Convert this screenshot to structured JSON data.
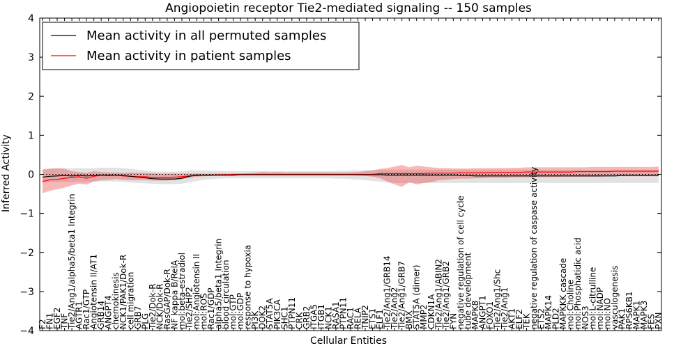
{
  "chart_data": {
    "type": "line",
    "title": "Angiopoietin receptor Tie2-mediated signaling -- 150 samples",
    "xlabel": "Cellular Entities",
    "ylabel": "Inferred Activity",
    "ylim": [
      -4,
      4
    ],
    "yticks": [
      "−4",
      "−3",
      "−2",
      "−1",
      "0",
      "1",
      "2",
      "3",
      "4"
    ],
    "yticks_values": [
      -4,
      -3,
      -2,
      -1,
      0,
      1,
      2,
      3,
      4
    ],
    "legend_position": "top-left",
    "legend": [
      {
        "label": "Mean activity in all permuted samples",
        "color": "#000000"
      },
      {
        "label": "Mean activity in patient samples",
        "color": "#ff0000"
      }
    ],
    "categories": [
      "F2",
      "FN1",
      "EGF2",
      "TNF",
      "Tie2/Ang1/alpha5/beta1 Integrin",
      "AGTR1",
      "Rac1/GTP",
      "Angiotensin II/AT1",
      "GRB14",
      "ANGPT4",
      "chemokinesis",
      "NCK1/PAK1/Dok-R",
      "cell migration",
      "GRB7",
      "PLG",
      "Tie2/Dok-R",
      "NCK/Dok-R",
      "RasGAP/Dok-R",
      "NF kappa B/RelA",
      "mol:beta-estradiol",
      "Tie2/SHP2",
      "mol:Angiotensin II",
      "mol:ROS",
      "Rac1/GDP",
      "alpha5/beta1 Integrin",
      "blood circulation",
      "mol:GTP",
      "mol:GDP",
      "response to hypoxia",
      "PI3K",
      "DOK2",
      "STAT5A",
      "PIK3CA",
      "SHC1",
      "PTPN11",
      "CRK",
      "GRB2",
      "ITGA5",
      "ITGB1",
      "NCK1",
      "RASA1",
      "PTPN11",
      "RAC1",
      "RELA",
      "TNIP2",
      "ETS1",
      "ELF1",
      "Tie2/Ang1/GRB14",
      "Tie2/Ang2",
      "Tie2/Ang1/GRB7",
      "BMX",
      "STAT5A (dimer)",
      "MMP2",
      "CDKN1A",
      "Tie2/Ang1/ABIN2",
      "Tie2/Ang1/GRB2",
      "FYN",
      "negative regulation of cell cycle",
      "tube development",
      "MAPK8",
      "ANGPT1",
      "FOXO1",
      "Tie2/Ang1/Shc",
      "Tie2/Ang1",
      "AKT1",
      "ELF2",
      "TEK",
      "negative regulation of caspase activity",
      "ETS2",
      "MAPK14",
      "PLD2",
      "MAPKKK cascade",
      "mol:Choline",
      "mol:Phosphatidic acid",
      "NOS3",
      "mol:L-citrulline",
      "mol:NADP",
      "mol:NO",
      "vasculogenesis",
      "PAK1",
      "RPS6KB1",
      "MAPK1",
      "MAPK3",
      "FES",
      "PXN"
    ],
    "series": [
      {
        "name": "Mean activity in all permuted samples",
        "color": "#000000",
        "values": [
          -0.07,
          -0.05,
          -0.04,
          -0.03,
          -0.04,
          -0.03,
          -0.04,
          -0.03,
          -0.02,
          -0.02,
          -0.02,
          -0.03,
          -0.05,
          -0.07,
          -0.09,
          -0.11,
          -0.12,
          -0.12,
          -0.12,
          -0.1,
          -0.05,
          -0.02,
          -0.02,
          -0.02,
          -0.02,
          -0.02,
          -0.02,
          -0.01,
          -0.01,
          -0.01,
          -0.01,
          -0.01,
          -0.01,
          -0.01,
          -0.01,
          -0.01,
          -0.01,
          -0.01,
          -0.01,
          -0.01,
          -0.01,
          -0.01,
          -0.01,
          -0.01,
          -0.01,
          -0.01,
          -0.01,
          -0.02,
          -0.02,
          -0.02,
          -0.02,
          -0.02,
          -0.02,
          -0.02,
          -0.02,
          -0.02,
          -0.02,
          -0.03,
          -0.03,
          -0.04,
          -0.04,
          -0.04,
          -0.04,
          -0.04,
          -0.04,
          -0.04,
          -0.04,
          -0.04,
          -0.04,
          -0.04,
          -0.04,
          -0.04,
          -0.04,
          -0.04,
          -0.04,
          -0.04,
          -0.04,
          -0.04,
          -0.04,
          -0.03,
          -0.03,
          -0.03,
          -0.03,
          -0.03,
          -0.03
        ],
        "band_lower": [
          -0.22,
          -0.2,
          -0.2,
          -0.19,
          -0.2,
          -0.19,
          -0.2,
          -0.19,
          -0.18,
          -0.18,
          -0.18,
          -0.19,
          -0.21,
          -0.22,
          -0.23,
          -0.24,
          -0.25,
          -0.25,
          -0.25,
          -0.24,
          -0.2,
          -0.17,
          -0.14,
          -0.12,
          -0.11,
          -0.1,
          -0.1,
          -0.1,
          -0.1,
          -0.1,
          -0.1,
          -0.1,
          -0.1,
          -0.1,
          -0.1,
          -0.1,
          -0.1,
          -0.1,
          -0.1,
          -0.1,
          -0.11,
          -0.11,
          -0.12,
          -0.13,
          -0.15,
          -0.17,
          -0.19,
          -0.21,
          -0.22,
          -0.22,
          -0.22,
          -0.22,
          -0.22,
          -0.22,
          -0.22,
          -0.22,
          -0.22,
          -0.22,
          -0.22,
          -0.22,
          -0.22,
          -0.22,
          -0.22,
          -0.22,
          -0.22,
          -0.22,
          -0.22,
          -0.22,
          -0.22,
          -0.22,
          -0.22,
          -0.22,
          -0.22,
          -0.22,
          -0.22,
          -0.22,
          -0.22,
          -0.22,
          -0.22,
          -0.22,
          -0.22,
          -0.22,
          -0.22,
          -0.22,
          -0.22
        ],
        "band_upper": [
          0.14,
          0.15,
          0.15,
          0.16,
          0.15,
          0.16,
          0.15,
          0.16,
          0.17,
          0.17,
          0.17,
          0.16,
          0.14,
          0.12,
          0.1,
          0.08,
          0.07,
          0.07,
          0.07,
          0.08,
          0.1,
          0.1,
          0.1,
          0.09,
          0.09,
          0.08,
          0.08,
          0.08,
          0.08,
          0.08,
          0.08,
          0.08,
          0.08,
          0.08,
          0.08,
          0.08,
          0.08,
          0.08,
          0.08,
          0.08,
          0.09,
          0.09,
          0.1,
          0.1,
          0.11,
          0.11,
          0.12,
          0.12,
          0.12,
          0.12,
          0.12,
          0.12,
          0.12,
          0.12,
          0.12,
          0.12,
          0.12,
          0.12,
          0.12,
          0.12,
          0.12,
          0.12,
          0.12,
          0.12,
          0.12,
          0.12,
          0.12,
          0.12,
          0.12,
          0.12,
          0.12,
          0.12,
          0.12,
          0.12,
          0.12,
          0.12,
          0.12,
          0.12,
          0.12,
          0.12,
          0.12,
          0.12,
          0.12,
          0.12,
          0.12
        ]
      },
      {
        "name": "Mean activity in patient samples",
        "color": "#ff0000",
        "values": [
          -0.18,
          -0.14,
          -0.13,
          -0.1,
          -0.08,
          -0.06,
          -0.1,
          -0.05,
          -0.02,
          -0.03,
          -0.02,
          -0.04,
          -0.05,
          -0.06,
          -0.06,
          -0.08,
          -0.08,
          -0.08,
          -0.07,
          -0.06,
          -0.04,
          -0.03,
          -0.02,
          -0.02,
          -0.01,
          -0.01,
          0.0,
          0.0,
          0.0,
          0.0,
          0.0,
          0.0,
          0.0,
          0.0,
          0.0,
          0.0,
          0.0,
          0.0,
          0.0,
          0.0,
          0.0,
          0.0,
          0.0,
          0.0,
          0.0,
          0.0,
          0.02,
          0.02,
          0.02,
          0.02,
          0.02,
          0.02,
          0.02,
          0.03,
          0.03,
          0.03,
          0.03,
          0.04,
          0.04,
          0.04,
          0.04,
          0.05,
          0.05,
          0.05,
          0.05,
          0.05,
          0.06,
          0.06,
          0.06,
          0.06,
          0.06,
          0.06,
          0.06,
          0.07,
          0.07,
          0.07,
          0.07,
          0.07,
          0.08,
          0.08,
          0.08,
          0.08,
          0.08,
          0.08,
          0.08
        ],
        "band_lower": [
          -0.48,
          -0.42,
          -0.38,
          -0.34,
          -0.28,
          -0.24,
          -0.26,
          -0.18,
          -0.15,
          -0.14,
          -0.12,
          -0.14,
          -0.15,
          -0.15,
          -0.15,
          -0.16,
          -0.16,
          -0.16,
          -0.14,
          -0.12,
          -0.09,
          -0.06,
          -0.05,
          -0.04,
          -0.03,
          -0.03,
          -0.02,
          -0.02,
          -0.02,
          -0.02,
          -0.02,
          -0.02,
          -0.02,
          -0.02,
          -0.02,
          -0.02,
          -0.02,
          -0.02,
          -0.02,
          -0.02,
          -0.02,
          -0.02,
          -0.02,
          -0.03,
          -0.04,
          -0.06,
          -0.1,
          -0.18,
          -0.26,
          -0.32,
          -0.2,
          -0.26,
          -0.22,
          -0.2,
          -0.15,
          -0.14,
          -0.12,
          -0.11,
          -0.11,
          -0.1,
          -0.1,
          -0.09,
          -0.09,
          -0.09,
          -0.08,
          -0.08,
          -0.08,
          -0.07,
          -0.07,
          -0.07,
          -0.07,
          -0.06,
          -0.06,
          -0.06,
          -0.06,
          -0.06,
          -0.06,
          -0.05,
          -0.05,
          -0.05,
          -0.05,
          -0.05,
          -0.05,
          -0.05,
          -0.05
        ],
        "band_upper": [
          0.12,
          0.14,
          0.16,
          0.14,
          0.08,
          0.06,
          0.04,
          0.08,
          0.06,
          0.05,
          0.05,
          0.04,
          0.05,
          0.04,
          0.04,
          0.03,
          0.02,
          0.02,
          0.02,
          0.02,
          0.02,
          0.02,
          0.02,
          0.02,
          0.02,
          0.02,
          0.02,
          0.02,
          0.03,
          0.04,
          0.06,
          0.05,
          0.06,
          0.05,
          0.05,
          0.05,
          0.05,
          0.05,
          0.05,
          0.05,
          0.05,
          0.05,
          0.05,
          0.06,
          0.08,
          0.1,
          0.14,
          0.16,
          0.2,
          0.24,
          0.18,
          0.22,
          0.2,
          0.18,
          0.16,
          0.16,
          0.15,
          0.15,
          0.15,
          0.16,
          0.16,
          0.16,
          0.16,
          0.16,
          0.17,
          0.17,
          0.18,
          0.18,
          0.18,
          0.18,
          0.18,
          0.18,
          0.18,
          0.18,
          0.18,
          0.19,
          0.19,
          0.19,
          0.19,
          0.19,
          0.19,
          0.19,
          0.19,
          0.19,
          0.2
        ]
      }
    ]
  }
}
